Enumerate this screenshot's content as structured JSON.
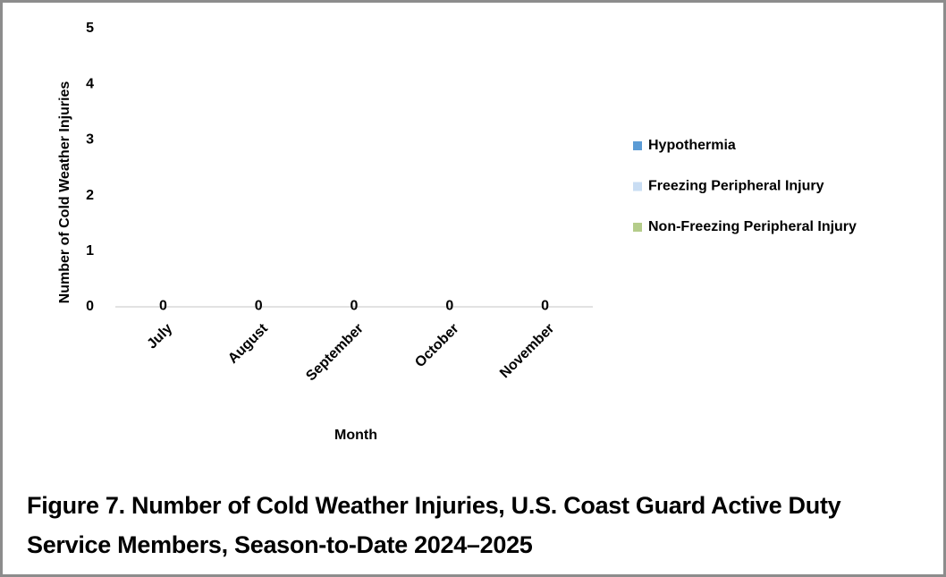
{
  "chart_data": {
    "type": "bar",
    "stacked": true,
    "title": "Figure 7. Number of Cold Weather Injuries, U.S. Coast Guard Active Duty Service Members, Season-to-Date 2024–2025",
    "x_label": "Month",
    "y_label": "Number of Cold Weather Injuries",
    "categories": [
      "July",
      "August",
      "September",
      "October",
      "November"
    ],
    "series": [
      {
        "name": "Hypothermia",
        "color": "#5b9bd5",
        "values": [
          0,
          0,
          0,
          0,
          0
        ]
      },
      {
        "name": "Freezing Peripheral Injury",
        "color": "#c9ddf3",
        "values": [
          0,
          0,
          0,
          0,
          0
        ]
      },
      {
        "name": "Non-Freezing Peripheral Injury",
        "color": "#b4cc8a",
        "values": [
          0,
          0,
          0,
          0,
          0
        ]
      }
    ],
    "ylim": [
      0,
      5
    ],
    "yticks": [
      0,
      1,
      2,
      3,
      4,
      5
    ],
    "grid": false,
    "legend": "right"
  }
}
